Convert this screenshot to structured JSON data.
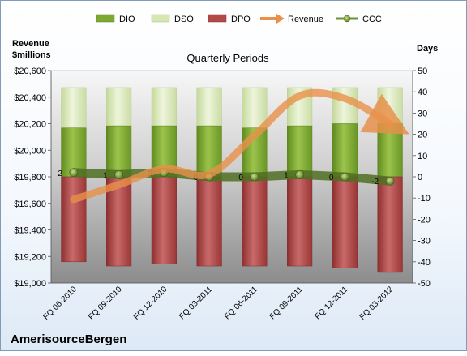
{
  "chart_data": {
    "type": "bar",
    "title": "Quarterly Periods",
    "company": "AmerisourceBergen",
    "left_axis_label_line1": "Revenue",
    "left_axis_label_line2": "$millions",
    "right_axis_label": "Days",
    "categories": [
      "FQ 06-2010",
      "FQ 09-2010",
      "FQ 12-2010",
      "FQ 03-2011",
      "FQ 06-2011",
      "FQ 09-2011",
      "FQ 12-2011",
      "FQ 03-2012"
    ],
    "left_ylim": [
      19000,
      20600
    ],
    "left_ticks": [
      "$19,000",
      "$19,200",
      "$19,400",
      "$19,600",
      "$19,800",
      "$20,000",
      "$20,200",
      "$20,400",
      "$20,600"
    ],
    "right_ylim": [
      -50,
      50
    ],
    "right_ticks": [
      "-50",
      "-40",
      "-30",
      "-20",
      "-10",
      "0",
      "10",
      "20",
      "30",
      "40",
      "50"
    ],
    "series": [
      {
        "name": "DIO",
        "axis": "right",
        "color": "#7fa832",
        "values": [
          23,
          24,
          24,
          24,
          23,
          24,
          25,
          25
        ]
      },
      {
        "name": "DSO",
        "axis": "right",
        "color": "#d7e6b3",
        "values": [
          19,
          18,
          18,
          18,
          19,
          18,
          17,
          17
        ]
      },
      {
        "name": "DPO",
        "axis": "right",
        "color": "#b34a4a",
        "values": [
          -40,
          -42,
          -41,
          -42,
          -42,
          -42,
          -43,
          -45
        ]
      },
      {
        "name": "Revenue",
        "axis": "left",
        "color": "#e8914a",
        "values": [
          19630,
          19740,
          19860,
          19820,
          20110,
          20410,
          20390,
          20200
        ]
      },
      {
        "name": "CCC",
        "axis": "right",
        "color": "#6e8f3a",
        "values": [
          2,
          1,
          2,
          0,
          0,
          1,
          0,
          -2
        ]
      }
    ],
    "ccc_labels": [
      "2",
      "1",
      "2",
      "0",
      "0",
      "1",
      "0",
      "-2"
    ],
    "legend_position": "top"
  }
}
